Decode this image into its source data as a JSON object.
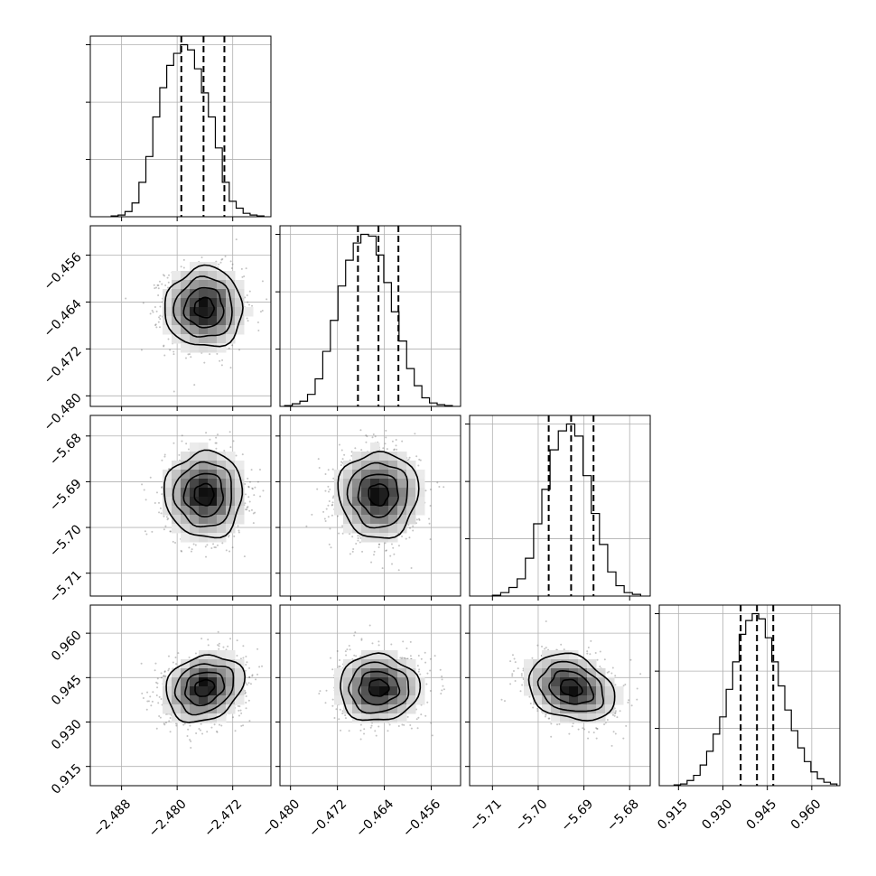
{
  "chart_data": {
    "type": "corner",
    "parameters": [
      {
        "id": "p0",
        "mean": -2.4761,
        "sd": 0.0028,
        "range": [
          -2.4925,
          -2.4665
        ],
        "quantiles": [
          -2.4794,
          -2.4762,
          -2.4732
        ],
        "ticks": [
          -2.488,
          -2.48,
          -2.472
        ],
        "tick_labels": [
          "−2.488",
          "−2.480",
          "−2.472"
        ]
      },
      {
        "id": "p1",
        "mean": -0.465,
        "sd": 0.0034,
        "range": [
          -0.4818,
          -0.451
        ],
        "quantiles": [
          -0.4685,
          -0.465,
          -0.4616
        ],
        "ticks": [
          -0.48,
          -0.472,
          -0.464,
          -0.456
        ],
        "tick_labels": [
          "−0.480",
          "−0.472",
          "−0.464",
          "−0.456"
        ]
      },
      {
        "id": "p2",
        "mean": -5.6928,
        "sd": 0.0047,
        "range": [
          -5.715,
          -5.6755
        ],
        "quantiles": [
          -5.6977,
          -5.6928,
          -5.6879
        ],
        "ticks": [
          -5.71,
          -5.7,
          -5.69,
          -5.68
        ],
        "tick_labels": [
          "−5.71",
          "−5.70",
          "−5.69",
          "−5.68"
        ]
      },
      {
        "id": "p3",
        "mean": 0.9415,
        "sd": 0.0056,
        "range": [
          0.9085,
          0.9695
        ],
        "quantiles": [
          0.936,
          0.9415,
          0.947
        ],
        "ticks": [
          0.915,
          0.93,
          0.945,
          0.96
        ],
        "tick_labels": [
          "0.915",
          "0.930",
          "0.945",
          "0.960"
        ]
      }
    ],
    "panels": [
      {
        "type": "hist",
        "param": "p0",
        "row": 0,
        "col": 0,
        "bin_edges": [
          -2.4895,
          -2.4885,
          -2.4875,
          -2.4865,
          -2.4855,
          -2.4845,
          -2.4835,
          -2.4825,
          -2.4815,
          -2.4805,
          -2.4795,
          -2.4785,
          -2.4775,
          -2.4765,
          -2.4755,
          -2.4745,
          -2.4735,
          -2.4725,
          -2.4715,
          -2.4705,
          -2.4695,
          -2.4685,
          -2.4675
        ],
        "counts": [
          0.005,
          0.01,
          0.03,
          0.08,
          0.2,
          0.35,
          0.58,
          0.75,
          0.88,
          0.95,
          1.0,
          0.97,
          0.86,
          0.72,
          0.58,
          0.4,
          0.2,
          0.09,
          0.05,
          0.02,
          0.01,
          0.005
        ]
      },
      {
        "type": "hist",
        "param": "p1",
        "row": 1,
        "col": 1,
        "bin_edges": [
          -0.481,
          -0.4797,
          -0.4784,
          -0.4771,
          -0.4758,
          -0.4745,
          -0.4732,
          -0.4719,
          -0.4706,
          -0.4693,
          -0.468,
          -0.4667,
          -0.4654,
          -0.4641,
          -0.4628,
          -0.4615,
          -0.4602,
          -0.4589,
          -0.4576,
          -0.4563,
          -0.455,
          -0.4537,
          -0.4524
        ],
        "counts": [
          0.005,
          0.015,
          0.03,
          0.07,
          0.16,
          0.32,
          0.5,
          0.7,
          0.85,
          0.95,
          1.0,
          0.99,
          0.88,
          0.72,
          0.55,
          0.38,
          0.22,
          0.12,
          0.05,
          0.02,
          0.01,
          0.005
        ]
      },
      {
        "type": "hist",
        "param": "p2",
        "row": 2,
        "col": 2,
        "bin_edges": [
          -5.71,
          -5.7082,
          -5.7064,
          -5.7046,
          -5.7028,
          -5.701,
          -5.6992,
          -5.6974,
          -5.6956,
          -5.6938,
          -5.692,
          -5.6902,
          -5.6884,
          -5.6866,
          -5.6848,
          -5.683,
          -5.6812,
          -5.6794,
          -5.6776
        ],
        "counts": [
          0.005,
          0.02,
          0.05,
          0.1,
          0.22,
          0.42,
          0.62,
          0.85,
          0.96,
          1.0,
          0.93,
          0.7,
          0.48,
          0.3,
          0.14,
          0.06,
          0.02,
          0.01
        ]
      },
      {
        "type": "hist",
        "param": "p3",
        "row": 3,
        "col": 3,
        "bin_edges": [
          0.9135,
          0.9157,
          0.9179,
          0.9201,
          0.9223,
          0.9245,
          0.9267,
          0.9289,
          0.9311,
          0.9333,
          0.9355,
          0.9377,
          0.9399,
          0.9421,
          0.9443,
          0.9465,
          0.9487,
          0.9509,
          0.9531,
          0.9553,
          0.9575,
          0.9597,
          0.9619,
          0.9641,
          0.9663,
          0.9685
        ],
        "counts": [
          0.005,
          0.01,
          0.03,
          0.06,
          0.12,
          0.2,
          0.3,
          0.4,
          0.56,
          0.72,
          0.88,
          0.96,
          1.0,
          0.97,
          0.86,
          0.72,
          0.58,
          0.44,
          0.32,
          0.22,
          0.14,
          0.08,
          0.04,
          0.02,
          0.01
        ]
      },
      {
        "type": "hist2d",
        "x": "p0",
        "y": "p1",
        "row": 1,
        "col": 0,
        "rho": 0.0
      },
      {
        "type": "hist2d",
        "x": "p0",
        "y": "p2",
        "row": 2,
        "col": 0,
        "rho": 0.0
      },
      {
        "type": "hist2d",
        "x": "p1",
        "y": "p2",
        "row": 2,
        "col": 1,
        "rho": 0.0
      },
      {
        "type": "hist2d",
        "x": "p0",
        "y": "p3",
        "row": 3,
        "col": 0,
        "rho": 0.2
      },
      {
        "type": "hist2d",
        "x": "p1",
        "y": "p3",
        "row": 3,
        "col": 1,
        "rho": 0.0
      },
      {
        "type": "hist2d",
        "x": "p2",
        "y": "p3",
        "row": 3,
        "col": 2,
        "rho": -0.25
      }
    ],
    "contour_levels_sigma": [
      0.5,
      1.0,
      1.5,
      2.0
    ],
    "grid": true,
    "quantile_lines": "dashed",
    "colors": {
      "contour": "#000000",
      "density_max": "#000000",
      "scatter": "#555555"
    }
  }
}
